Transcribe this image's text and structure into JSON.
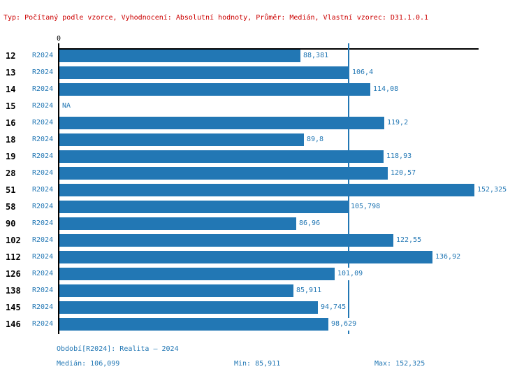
{
  "header": {
    "info_line": "Typ: Počítaný podle vzorce, Vyhodnocení: Absolutní hodnoty, Průměr: Medián, Vlastní vzorec: D31.1.0.1"
  },
  "chart_data": {
    "type": "bar",
    "orientation": "horizontal",
    "series_name": "R2024",
    "categories": [
      "12",
      "13",
      "14",
      "15",
      "16",
      "18",
      "19",
      "28",
      "51",
      "58",
      "90",
      "102",
      "112",
      "126",
      "138",
      "145",
      "146"
    ],
    "values": [
      88.381,
      106.4,
      114.08,
      null,
      119.2,
      89.8,
      118.93,
      120.57,
      152.325,
      105.798,
      86.96,
      122.55,
      136.92,
      101.09,
      85.911,
      94.745,
      98.629
    ],
    "value_labels": [
      "88,381",
      "106,4",
      "114,08",
      "NA",
      "119,2",
      "89,8",
      "118,93",
      "120,57",
      "152,325",
      "105,798",
      "86,96",
      "122,55",
      "136,92",
      "101,09",
      "85,911",
      "94,745",
      "98,629"
    ],
    "na_label": "NA",
    "x_origin_label": "0",
    "median_value": 106.099,
    "min_value": 85.911,
    "max_value": 152.325,
    "xlim": [
      0,
      153.8
    ],
    "grid": false,
    "legend": "none",
    "colors": {
      "bar": "#2277b4",
      "value_text": "#2277b4",
      "median_line": "#2277b4",
      "axis": "#000000",
      "header_text": "#cc0000"
    }
  },
  "footer": {
    "period_label": "Období[R2024]: Realita – 2024",
    "median_label": "Medián: 106,099",
    "min_label": "Min: 85,911",
    "max_label": "Max: 152,325"
  }
}
